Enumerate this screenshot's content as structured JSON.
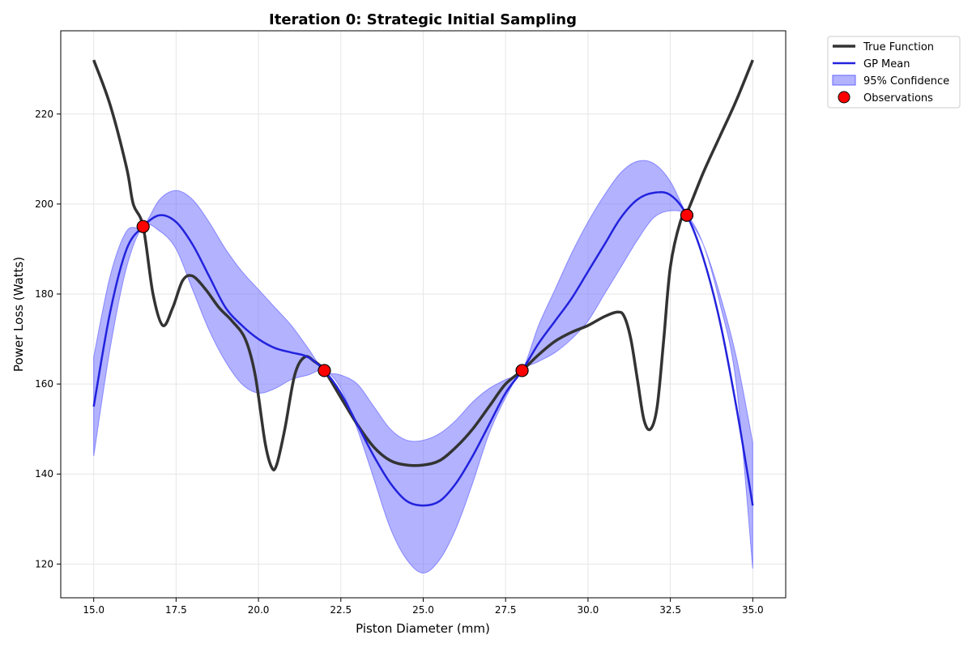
{
  "chart_data": {
    "type": "line",
    "title": "Iteration 0: Strategic Initial Sampling",
    "xlabel": "Piston Diameter (mm)",
    "ylabel": "Power Loss (Watts)",
    "xlim": [
      14.0,
      36.0
    ],
    "ylim": [
      112.5,
      238.5
    ],
    "xticks": [
      15.0,
      17.5,
      20.0,
      22.5,
      25.0,
      27.5,
      30.0,
      32.5,
      35.0
    ],
    "xtick_labels": [
      "15.0",
      "17.5",
      "20.0",
      "22.5",
      "25.0",
      "27.5",
      "30.0",
      "32.5",
      "35.0"
    ],
    "yticks": [
      120,
      140,
      160,
      180,
      200,
      220
    ],
    "ytick_labels": [
      "120",
      "140",
      "160",
      "180",
      "200",
      "220"
    ],
    "grid": true,
    "legend_position": "outside-top-right",
    "legend": [
      {
        "label": "True Function",
        "kind": "line",
        "color": "#333333"
      },
      {
        "label": "GP Mean",
        "kind": "line",
        "color": "#2222dd"
      },
      {
        "label": "95% Confidence",
        "kind": "patch",
        "color": "#6666ff"
      },
      {
        "label": "Observations",
        "kind": "marker",
        "color": "#ff0000"
      }
    ],
    "series": [
      {
        "name": "True Function",
        "color": "#333333",
        "x": [
          15.0,
          15.5,
          16.0,
          16.2,
          16.5,
          16.8,
          17.1,
          17.4,
          17.7,
          18.0,
          18.4,
          18.8,
          19.2,
          19.6,
          19.9,
          20.2,
          20.4,
          20.55,
          20.8,
          21.1,
          21.4,
          21.7,
          22.0,
          22.5,
          23.0,
          23.5,
          24.0,
          24.5,
          25.0,
          25.5,
          26.0,
          26.5,
          27.0,
          27.5,
          28.0,
          28.5,
          29.0,
          29.5,
          30.0,
          30.5,
          30.9,
          31.1,
          31.3,
          31.5,
          31.7,
          31.9,
          32.1,
          32.3,
          32.5,
          32.8,
          33.0,
          33.5,
          34.0,
          34.5,
          35.0
        ],
        "y": [
          232,
          222,
          208,
          200,
          195,
          180,
          173,
          177,
          183,
          184,
          181,
          177,
          174,
          170,
          162,
          147,
          141.5,
          142,
          150,
          162,
          166,
          165,
          163,
          157,
          151,
          146,
          143,
          142,
          142,
          143,
          146,
          150,
          155,
          160,
          163,
          166.5,
          169.5,
          171.5,
          173,
          175,
          176,
          175,
          170,
          161,
          152,
          150,
          155,
          170,
          186,
          196,
          198,
          207,
          215,
          223,
          232
        ]
      },
      {
        "name": "GP Mean",
        "color": "#2222dd",
        "x": [
          15.0,
          15.5,
          16.0,
          16.5,
          17.0,
          17.5,
          18.0,
          18.5,
          19.0,
          19.5,
          20.0,
          20.5,
          21.0,
          21.5,
          22.0,
          22.5,
          23.0,
          23.5,
          24.0,
          24.5,
          25.0,
          25.5,
          26.0,
          26.5,
          27.0,
          27.5,
          28.0,
          28.5,
          29.0,
          29.5,
          30.0,
          30.5,
          31.0,
          31.5,
          32.0,
          32.5,
          33.0,
          33.5,
          34.0,
          34.5,
          35.0
        ],
        "y": [
          155,
          176,
          190,
          195,
          197.5,
          196,
          191,
          184,
          177,
          173,
          170,
          168,
          167,
          166,
          163,
          158,
          151,
          144,
          138,
          134,
          133,
          134,
          138,
          144,
          151,
          158,
          163,
          169,
          174,
          179,
          185,
          191,
          197,
          201,
          202.5,
          202,
          197.5,
          188,
          174,
          155,
          133
        ]
      },
      {
        "name": "95% Confidence",
        "color": "#6666ff",
        "x": [
          15.0,
          15.5,
          16.0,
          16.5,
          17.0,
          17.5,
          18.0,
          18.5,
          19.0,
          19.5,
          20.0,
          20.5,
          21.0,
          21.5,
          22.0,
          22.5,
          23.0,
          23.5,
          24.0,
          24.5,
          25.0,
          25.5,
          26.0,
          26.5,
          27.0,
          27.5,
          28.0,
          28.5,
          29.0,
          29.5,
          30.0,
          30.5,
          31.0,
          31.5,
          32.0,
          32.5,
          33.0,
          33.5,
          34.0,
          34.5,
          35.0
        ],
        "lower": [
          144,
          168,
          186,
          195,
          194,
          190,
          181,
          172,
          165,
          160,
          158,
          159,
          161,
          162,
          163,
          159,
          150,
          139,
          128,
          121,
          118,
          121,
          128,
          138,
          149,
          157,
          163,
          165,
          167,
          170,
          174,
          180,
          186,
          192,
          197,
          198.5,
          197.5,
          191,
          178,
          160,
          119
        ],
        "upper": [
          166,
          184,
          194,
          195,
          201,
          203,
          201,
          196,
          190,
          185,
          181,
          177,
          173,
          168,
          163,
          162,
          160,
          155,
          150,
          147.5,
          147.5,
          149,
          152,
          156,
          159,
          161,
          163,
          173,
          181,
          189,
          196,
          202,
          207,
          209.5,
          209,
          205,
          197.5,
          191,
          180,
          166,
          147
        ]
      },
      {
        "name": "Observations",
        "color": "#ff0000",
        "x": [
          16.5,
          22.0,
          28.0,
          33.0
        ],
        "y": [
          195.0,
          163.0,
          163.0,
          197.5
        ]
      }
    ]
  }
}
